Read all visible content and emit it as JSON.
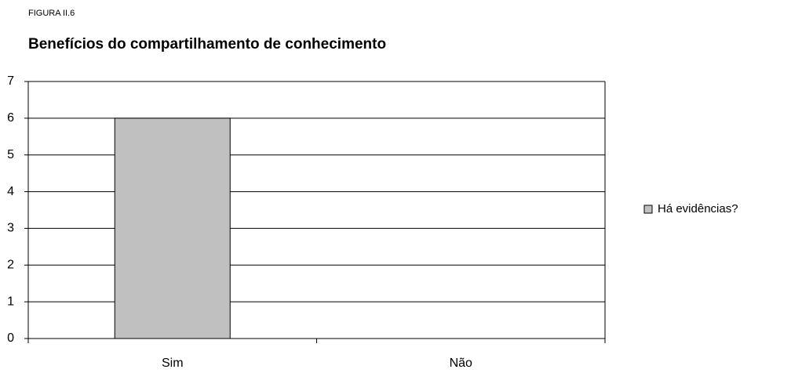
{
  "chart_data": {
    "type": "bar",
    "figure_label": "FIGURA II.6",
    "title": "Benefícios do compartilhamento de conhecimento",
    "categories": [
      "Sim",
      "Não"
    ],
    "series": [
      {
        "name": "Há evidências?",
        "color": "#c0c0c0",
        "values": [
          6,
          0
        ]
      }
    ],
    "ylim": [
      0,
      7
    ],
    "yticks": [
      0,
      1,
      2,
      3,
      4,
      5,
      6,
      7
    ],
    "grid": true,
    "legend": "right"
  }
}
